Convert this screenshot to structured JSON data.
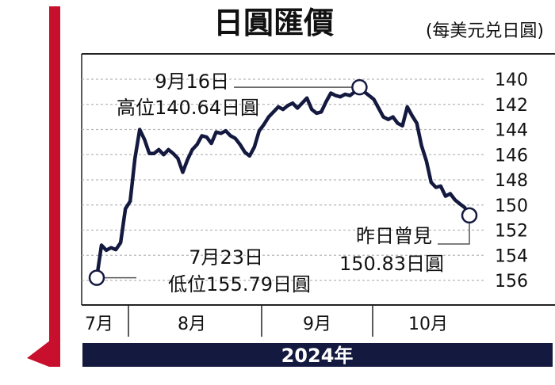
{
  "chart_data": {
    "type": "line",
    "title": "日圓匯價",
    "unit_label": "(每美元兑日圓)",
    "year_label": "2024年",
    "x_tick_labels": [
      "7月",
      "8月",
      "9月",
      "10月"
    ],
    "y_ticks": [
      140,
      142,
      144,
      146,
      148,
      150,
      152,
      154,
      156
    ],
    "ylim": [
      156.6,
      139.6
    ],
    "y_inverted": true,
    "grid": true,
    "annotations": {
      "high": {
        "date_label": "9月16日",
        "value_label": "高位140.64日圓",
        "point_index": 55
      },
      "low": {
        "date_label": "7月23日",
        "value_label": "低位155.79日圓",
        "point_index": 0
      },
      "last": {
        "date_label": "昨日曾見",
        "value_label": "150.83日圓",
        "point_index": 78
      }
    },
    "series": [
      {
        "values": [
          155.79,
          153.2,
          153.6,
          153.4,
          153.55,
          153.0,
          150.3,
          149.7,
          146.3,
          144.0,
          144.8,
          145.9,
          145.9,
          145.6,
          146.0,
          145.6,
          145.9,
          146.3,
          147.4,
          146.4,
          145.6,
          145.2,
          144.5,
          144.6,
          145.1,
          144.2,
          144.3,
          144.1,
          144.5,
          144.7,
          145.2,
          145.8,
          146.1,
          145.4,
          144.1,
          143.6,
          143.0,
          142.6,
          142.2,
          142.4,
          142.1,
          141.9,
          142.3,
          141.9,
          141.5,
          142.4,
          142.7,
          142.6,
          141.8,
          141.1,
          141.3,
          141.4,
          141.2,
          141.3,
          141.0,
          140.64,
          141.0,
          141.3,
          141.6,
          142.3,
          143.0,
          143.2,
          143.0,
          143.5,
          143.7,
          142.2,
          142.9,
          143.5,
          145.3,
          146.5,
          148.2,
          148.6,
          148.5,
          149.3,
          149.1,
          149.6,
          149.9,
          150.2,
          150.83
        ]
      }
    ]
  }
}
